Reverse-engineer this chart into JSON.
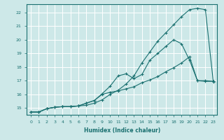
{
  "title": "",
  "xlabel": "Humidex (Indice chaleur)",
  "ylabel": "",
  "bg_color": "#cde8e8",
  "grid_color": "#ffffff",
  "line_color": "#1a7070",
  "xlim": [
    -0.5,
    23.5
  ],
  "ylim": [
    14.5,
    22.6
  ],
  "yticks": [
    15,
    16,
    17,
    18,
    19,
    20,
    21,
    22
  ],
  "xticks": [
    0,
    1,
    2,
    3,
    4,
    5,
    6,
    7,
    8,
    9,
    10,
    11,
    12,
    13,
    14,
    15,
    16,
    17,
    18,
    19,
    20,
    21,
    22,
    23
  ],
  "line1_x": [
    0,
    1,
    2,
    3,
    4,
    5,
    6,
    7,
    8,
    9,
    10,
    11,
    12,
    13,
    14,
    15,
    16,
    17,
    18,
    19,
    20,
    21,
    22,
    23
  ],
  "line1_y": [
    14.7,
    14.7,
    14.95,
    15.05,
    15.1,
    15.1,
    15.15,
    15.2,
    15.35,
    15.6,
    16.0,
    16.3,
    16.75,
    17.35,
    18.3,
    19.1,
    19.9,
    20.5,
    21.1,
    21.7,
    22.2,
    22.3,
    22.2,
    16.9
  ],
  "line2_x": [
    0,
    1,
    2,
    3,
    4,
    5,
    6,
    7,
    8,
    9,
    10,
    11,
    12,
    13,
    14,
    15,
    16,
    17,
    18,
    19,
    20,
    21,
    22,
    23
  ],
  "line2_y": [
    14.7,
    14.7,
    14.95,
    15.05,
    15.1,
    15.1,
    15.15,
    15.35,
    15.55,
    16.05,
    16.6,
    17.35,
    17.5,
    17.15,
    17.45,
    18.5,
    19.0,
    19.5,
    20.0,
    19.7,
    18.5,
    17.0,
    17.0,
    16.95
  ],
  "line3_x": [
    0,
    1,
    2,
    3,
    4,
    5,
    6,
    7,
    8,
    9,
    10,
    11,
    12,
    13,
    14,
    15,
    16,
    17,
    18,
    19,
    20,
    21,
    22,
    23
  ],
  "line3_y": [
    14.7,
    14.7,
    14.95,
    15.05,
    15.1,
    15.1,
    15.15,
    15.35,
    15.55,
    16.0,
    16.15,
    16.25,
    16.4,
    16.55,
    16.85,
    17.05,
    17.3,
    17.65,
    17.95,
    18.3,
    18.75,
    17.0,
    16.95,
    16.95
  ]
}
